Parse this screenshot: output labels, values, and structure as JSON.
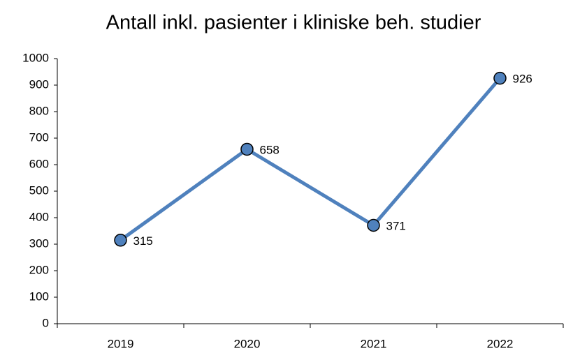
{
  "chart_data": {
    "type": "line",
    "title": "Antall inkl. pasienter i kliniske beh. studier",
    "categories": [
      "2019",
      "2020",
      "2021",
      "2022"
    ],
    "series": [
      {
        "name": "Antall inkl. pasienter",
        "color": "#4f81bd",
        "marker_color": "#4f81bd",
        "values": [
          315,
          658,
          371,
          926
        ]
      }
    ],
    "ylim": [
      0,
      1000
    ],
    "yticks": [
      0,
      100,
      200,
      300,
      400,
      500,
      600,
      700,
      800,
      900,
      1000
    ],
    "grid": false
  }
}
